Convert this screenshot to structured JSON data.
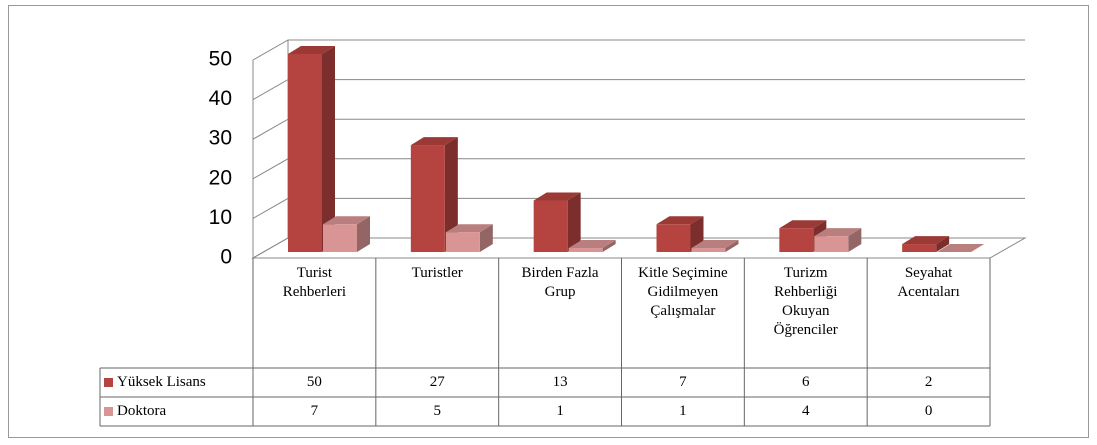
{
  "chart_data": {
    "type": "bar3d",
    "categories": [
      "Turist Rehberleri",
      "Turistler",
      "Birden Fazla Grup",
      "Kitle Seçimine Gidilmeyen Çalışmalar",
      "Turizm Rehberliği Okuyan Öğrenciler",
      "Seyahat Acentaları"
    ],
    "series": [
      {
        "name": "Yüksek Lisans",
        "color": "#b5433f",
        "values": [
          50,
          27,
          13,
          7,
          6,
          2
        ]
      },
      {
        "name": "Doktora",
        "color": "#d99594",
        "values": [
          7,
          5,
          1,
          1,
          4,
          0
        ]
      }
    ],
    "ylim": [
      0,
      50
    ],
    "yticks": [
      0,
      10,
      20,
      30,
      40,
      50
    ],
    "grid": true
  }
}
